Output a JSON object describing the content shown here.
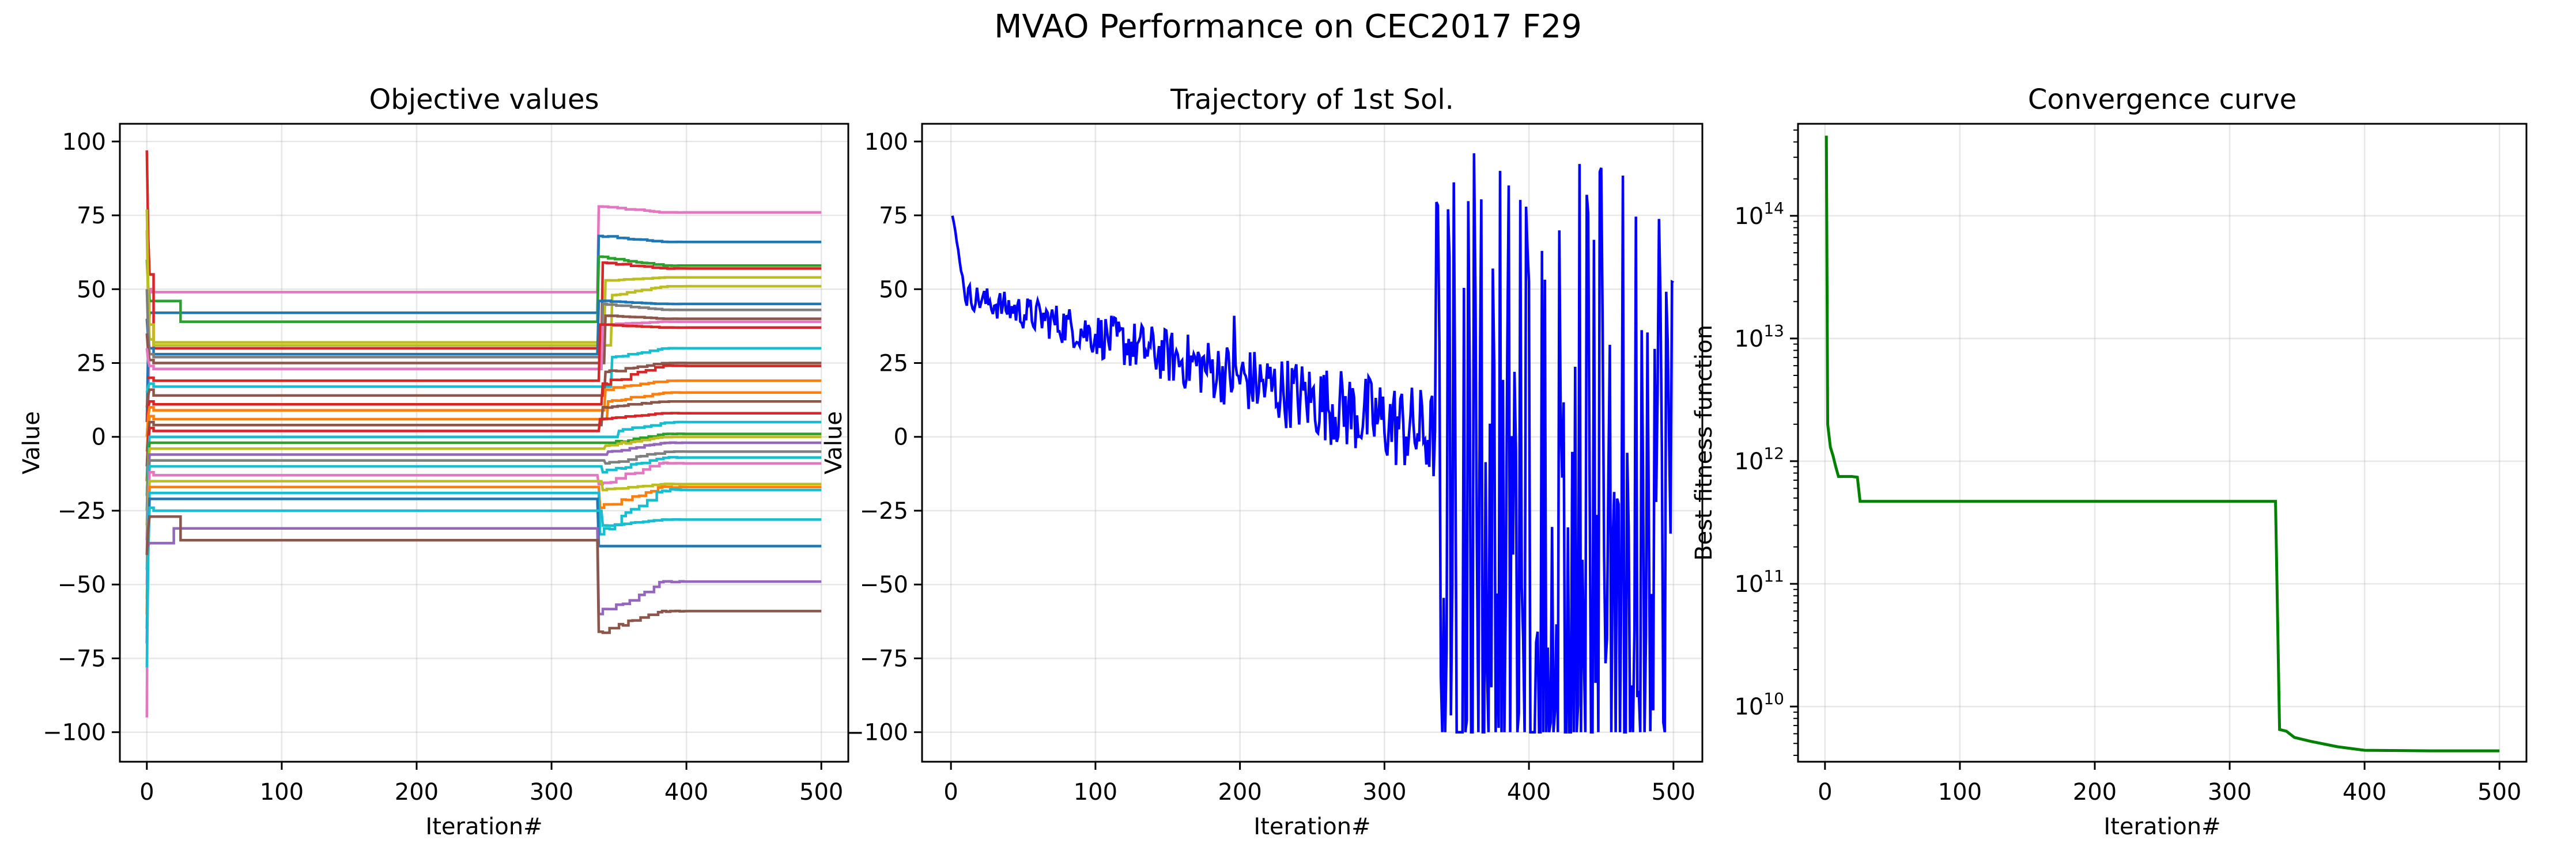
{
  "figure": {
    "title": "MVAO Performance on CEC2017 F29"
  },
  "chart_data": [
    {
      "type": "line",
      "title": "Objective values",
      "xlabel": "Iteration#",
      "ylabel": "Value",
      "xlim": [
        -20,
        520
      ],
      "ylim": [
        -110,
        106
      ],
      "xticks": [
        0,
        100,
        200,
        300,
        400,
        500
      ],
      "yticks": [
        -100,
        -75,
        -50,
        -25,
        0,
        25,
        50,
        75,
        100
      ],
      "grid": true,
      "palette": [
        "#1f77b4",
        "#ff7f0e",
        "#2ca02c",
        "#d62728",
        "#9467bd",
        "#8c564b",
        "#e377c2",
        "#7f7f7f",
        "#bcbd22",
        "#17becf"
      ],
      "series": [
        {
          "color": "#e377c2",
          "start": -95,
          "p1": 50,
          "p1_end": 3,
          "p2": 49,
          "jump_at": 335,
          "jump_to": 78,
          "final": 76
        },
        {
          "color": "#1f77b4",
          "start": 5,
          "p1": 42,
          "p1_end": 3,
          "p2": 42,
          "jump_at": 335,
          "jump_to": 68,
          "final": 66
        },
        {
          "color": "#2ca02c",
          "start": 60,
          "p1": 46,
          "p1_end": 25,
          "p2": 39,
          "jump_at": 335,
          "jump_to": 61,
          "final": 58
        },
        {
          "color": "#d62728",
          "start": 97,
          "p1": 55,
          "p1_end": 5,
          "p2": 30,
          "jump_at": 338,
          "jump_to": 59,
          "final": 57
        },
        {
          "color": "#bcbd22",
          "start": 77,
          "p1": 38,
          "p1_end": 5,
          "p2": 32,
          "jump_at": 340,
          "jump_to": 53,
          "final": 54
        },
        {
          "color": "#bcbd22",
          "start": 70,
          "p1": 33,
          "p1_end": 5,
          "p2": 31,
          "jump_at": 345,
          "jump_to": 48,
          "final": 51
        },
        {
          "color": "#1f77b4",
          "start": 40,
          "p1": 30,
          "p1_end": 5,
          "p2": 28,
          "jump_at": 335,
          "jump_to": 46,
          "final": 45
        },
        {
          "color": "#7f7f7f",
          "start": 50,
          "p1": 28,
          "p1_end": 5,
          "p2": 27,
          "jump_at": 338,
          "jump_to": 45,
          "final": 43
        },
        {
          "color": "#8c564b",
          "start": 35,
          "p1": 26,
          "p1_end": 5,
          "p2": 25,
          "jump_at": 340,
          "jump_to": 41,
          "final": 40
        },
        {
          "color": "#e377c2",
          "start": 30,
          "p1": 24,
          "p1_end": 5,
          "p2": 23,
          "jump_at": 338,
          "jump_to": 38,
          "final": 39
        },
        {
          "color": "#d62728",
          "start": 20,
          "p1": 20,
          "p1_end": 5,
          "p2": 19,
          "jump_at": 336,
          "jump_to": 38,
          "final": 37
        },
        {
          "color": "#17becf",
          "start": 15,
          "p1": 18,
          "p1_end": 5,
          "p2": 17,
          "jump_at": 345,
          "jump_to": 27,
          "final": 30
        },
        {
          "color": "#8c564b",
          "start": 10,
          "p1": 16,
          "p1_end": 5,
          "p2": 14,
          "jump_at": 340,
          "jump_to": 22,
          "final": 25
        },
        {
          "color": "#d62728",
          "start": 5,
          "p1": 12,
          "p1_end": 5,
          "p2": 11,
          "jump_at": 338,
          "jump_to": 18,
          "final": 24
        },
        {
          "color": "#ff7f0e",
          "start": 0,
          "p1": 10,
          "p1_end": 5,
          "p2": 9,
          "jump_at": 340,
          "jump_to": 16,
          "final": 19
        },
        {
          "color": "#ff7f0e",
          "start": -5,
          "p1": 7,
          "p1_end": 5,
          "p2": 6,
          "jump_at": 342,
          "jump_to": 12,
          "final": 15
        },
        {
          "color": "#8c564b",
          "start": -10,
          "p1": 5,
          "p1_end": 5,
          "p2": 4,
          "jump_at": 338,
          "jump_to": 10,
          "final": 12
        },
        {
          "color": "#d62728",
          "start": -15,
          "p1": 3,
          "p1_end": 5,
          "p2": 2,
          "jump_at": 336,
          "jump_to": 6,
          "final": 8
        },
        {
          "color": "#17becf",
          "start": -20,
          "p1": 0,
          "p1_end": 5,
          "p2": 0,
          "jump_at": 350,
          "jump_to": 2,
          "final": 5
        },
        {
          "color": "#2ca02c",
          "start": -25,
          "p1": -2,
          "p1_end": 5,
          "p2": -2,
          "jump_at": 345,
          "jump_to": -2,
          "final": 1
        },
        {
          "color": "#bcbd22",
          "start": -30,
          "p1": -4,
          "p1_end": 5,
          "p2": -4,
          "jump_at": 340,
          "jump_to": -3,
          "final": 0
        },
        {
          "color": "#9467bd",
          "start": -35,
          "p1": -6,
          "p1_end": 5,
          "p2": -6,
          "jump_at": 342,
          "jump_to": -5,
          "final": -2
        },
        {
          "color": "#7f7f7f",
          "start": -40,
          "p1": -8,
          "p1_end": 5,
          "p2": -8,
          "jump_at": 340,
          "jump_to": -9,
          "final": -5
        },
        {
          "color": "#17becf",
          "start": -45,
          "p1": -10,
          "p1_end": 5,
          "p2": -10,
          "jump_at": 338,
          "jump_to": -12,
          "final": -7
        },
        {
          "color": "#e377c2",
          "start": -50,
          "p1": -12,
          "p1_end": 5,
          "p2": -13,
          "jump_at": 335,
          "jump_to": -16,
          "final": -9
        },
        {
          "color": "#bcbd22",
          "start": -55,
          "p1": -15,
          "p1_end": 5,
          "p2": -15,
          "jump_at": 338,
          "jump_to": -18,
          "final": -16
        },
        {
          "color": "#ff7f0e",
          "start": -60,
          "p1": -17,
          "p1_end": 5,
          "p2": -17,
          "jump_at": 336,
          "jump_to": -24,
          "final": -17
        },
        {
          "color": "#17becf",
          "start": -65,
          "p1": -19,
          "p1_end": 5,
          "p2": -19,
          "jump_at": 336,
          "jump_to": -33,
          "final": -18
        },
        {
          "color": "#1f77b4",
          "start": -70,
          "p1": -21,
          "p1_end": 5,
          "p2": -21,
          "jump_at": 335,
          "jump_to": -37,
          "final": -37
        },
        {
          "color": "#17becf",
          "start": -78,
          "p1": -24,
          "p1_end": 5,
          "p2": -25,
          "jump_at": 338,
          "jump_to": -30,
          "final": -28
        },
        {
          "color": "#9467bd",
          "start": -38,
          "p1": -36,
          "p1_end": 20,
          "p2": -31,
          "jump_at": 335,
          "jump_to": -60,
          "final": -49
        },
        {
          "color": "#8c564b",
          "start": -40,
          "p1": -27,
          "p1_end": 25,
          "p2": -35,
          "jump_at": 335,
          "jump_to": -66,
          "final": -59
        }
      ]
    },
    {
      "type": "line",
      "title": "Trajectory of 1st Sol.",
      "xlabel": "Iteration#",
      "ylabel": "Value",
      "xlim": [
        -20,
        520
      ],
      "ylim": [
        -110,
        106
      ],
      "xticks": [
        0,
        100,
        200,
        300,
        400,
        500
      ],
      "yticks": [
        -100,
        -75,
        -50,
        -25,
        0,
        25,
        50,
        75,
        100
      ],
      "grid": true,
      "color": "#0000ff",
      "trend": {
        "start": 78,
        "mid": 48,
        "mid_at": 10,
        "end_phase1": 0,
        "phase1_end": 335
      },
      "spike": {
        "at": 196,
        "value": 41
      },
      "phase2": {
        "start": 335,
        "end": 500,
        "min": -100,
        "max": 96
      }
    },
    {
      "type": "line",
      "title": "Convergence curve",
      "xlabel": "Iteration#",
      "ylabel": "Best fitness function",
      "xlim": [
        -20,
        520
      ],
      "yscale": "log",
      "ylim_exp": [
        9.55,
        14.75
      ],
      "xticks": [
        0,
        100,
        200,
        300,
        400,
        500
      ],
      "yticks_exp": [
        10,
        11,
        12,
        13,
        14
      ],
      "grid": true,
      "color": "#008000",
      "points": [
        [
          1,
          450000000000000.0
        ],
        [
          2,
          2000000000000.0
        ],
        [
          4,
          1300000000000.0
        ],
        [
          6,
          1100000000000.0
        ],
        [
          8,
          900000000000.0
        ],
        [
          10,
          750000000000.0
        ],
        [
          20,
          750000000000.0
        ],
        [
          24,
          740000000000.0
        ],
        [
          26,
          470000000000.0
        ],
        [
          334,
          470000000000.0
        ],
        [
          337,
          6500000000.0
        ],
        [
          342,
          6300000000.0
        ],
        [
          348,
          5600000000.0
        ],
        [
          360,
          5200000000.0
        ],
        [
          380,
          4700000000.0
        ],
        [
          400,
          4400000000.0
        ],
        [
          450,
          4350000000.0
        ],
        [
          500,
          4350000000.0
        ]
      ]
    }
  ]
}
